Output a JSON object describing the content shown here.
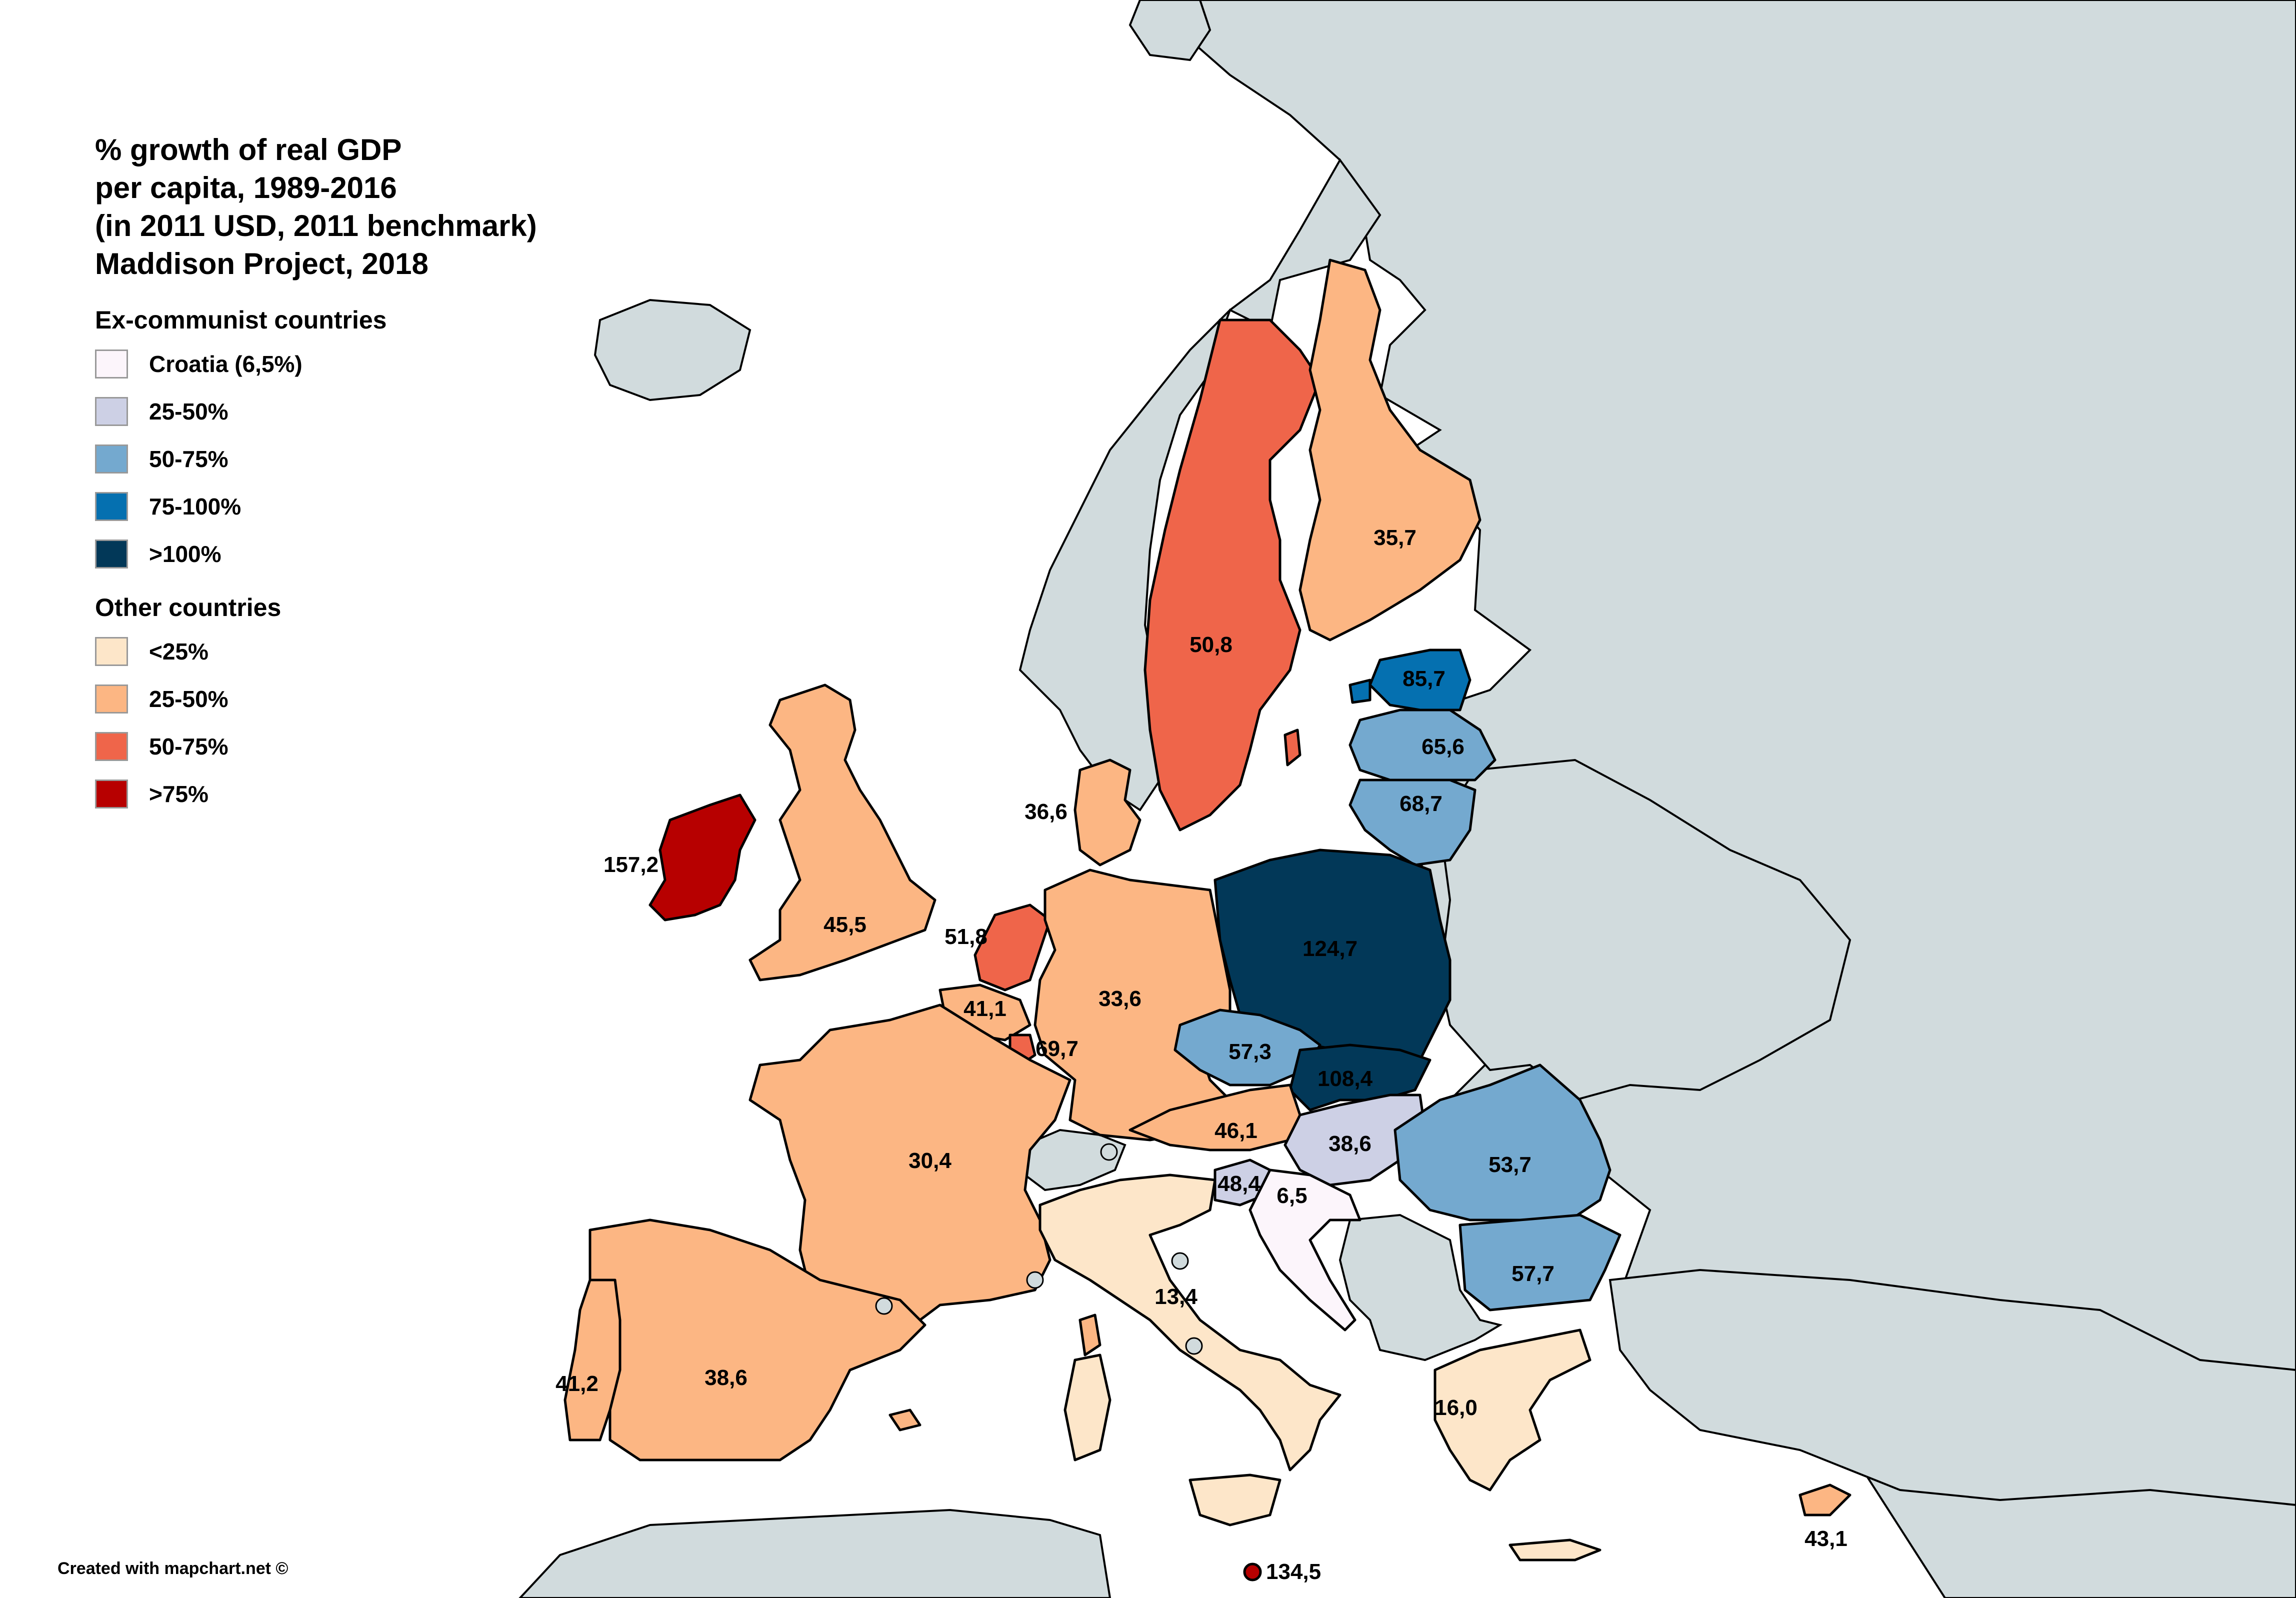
{
  "title_lines": [
    "% growth of real GDP",
    "per capita, 1989-2016",
    "(in 2011 USD, 2011 benchmark)",
    "Maddison Project, 2018"
  ],
  "legend": {
    "group1_title": "Ex-communist countries",
    "group1": [
      {
        "label": "Croatia (6,5%)",
        "color": "#fcf5fb"
      },
      {
        "label": "25-50%",
        "color": "#cdd0e5"
      },
      {
        "label": "50-75%",
        "color": "#74a9cf"
      },
      {
        "label": "75-100%",
        "color": "#0570b0"
      },
      {
        "label": ">100%",
        "color": "#023858"
      }
    ],
    "group2_title": "Other countries",
    "group2": [
      {
        "label": "<25%",
        "color": "#fde6c9"
      },
      {
        "label": "25-50%",
        "color": "#fcb683"
      },
      {
        "label": "50-75%",
        "color": "#ef654a"
      },
      {
        "label": ">75%",
        "color": "#b70000"
      }
    ]
  },
  "colors": {
    "background_land": "#d1dbdd",
    "sea": "#ffffff",
    "border": "#000000"
  },
  "countries": [
    {
      "name": "Ireland",
      "value": "157,2",
      "class": ">75%"
    },
    {
      "name": "United Kingdom",
      "value": "45,5",
      "class": "25-50%"
    },
    {
      "name": "Netherlands",
      "value": "51,8",
      "class": "50-75%"
    },
    {
      "name": "Belgium",
      "value": "41,1",
      "class": "25-50%"
    },
    {
      "name": "Luxembourg",
      "value": "69,7",
      "class": "50-75%"
    },
    {
      "name": "France",
      "value": "30,4",
      "class": "25-50%"
    },
    {
      "name": "Spain",
      "value": "38,6",
      "class": "25-50%"
    },
    {
      "name": "Portugal",
      "value": "41,2",
      "class": "25-50%"
    },
    {
      "name": "Germany",
      "value": "33,6",
      "class": "25-50%"
    },
    {
      "name": "Denmark",
      "value": "36,6",
      "class": "25-50%"
    },
    {
      "name": "Sweden",
      "value": "50,8",
      "class": "50-75%"
    },
    {
      "name": "Finland",
      "value": "35,7",
      "class": "25-50%"
    },
    {
      "name": "Austria",
      "value": "46,1",
      "class": "25-50%"
    },
    {
      "name": "Italy",
      "value": "13,4",
      "class": "<25%"
    },
    {
      "name": "Greece",
      "value": "16,0",
      "class": "<25%"
    },
    {
      "name": "Cyprus",
      "value": "43,1",
      "class": "25-50%"
    },
    {
      "name": "Malta",
      "value": "134,5",
      "class": ">75%"
    },
    {
      "name": "Estonia",
      "value": "85,7",
      "class": "75-100%"
    },
    {
      "name": "Latvia",
      "value": "65,6",
      "class": "50-75%"
    },
    {
      "name": "Lithuania",
      "value": "68,7",
      "class": "50-75%"
    },
    {
      "name": "Poland",
      "value": "124,7",
      "class": ">100%"
    },
    {
      "name": "Czech Republic",
      "value": "57,3",
      "class": "50-75%"
    },
    {
      "name": "Slovakia",
      "value": "108,4",
      "class": ">100%"
    },
    {
      "name": "Hungary",
      "value": "38,6",
      "class": "25-50%"
    },
    {
      "name": "Slovenia",
      "value": "48,4",
      "class": "25-50%"
    },
    {
      "name": "Croatia",
      "value": "6,5",
      "class": "Croatia"
    },
    {
      "name": "Romania",
      "value": "53,7",
      "class": "50-75%"
    },
    {
      "name": "Bulgaria",
      "value": "57,7",
      "class": "50-75%"
    }
  ],
  "credit": "Created with mapchart.net ©"
}
